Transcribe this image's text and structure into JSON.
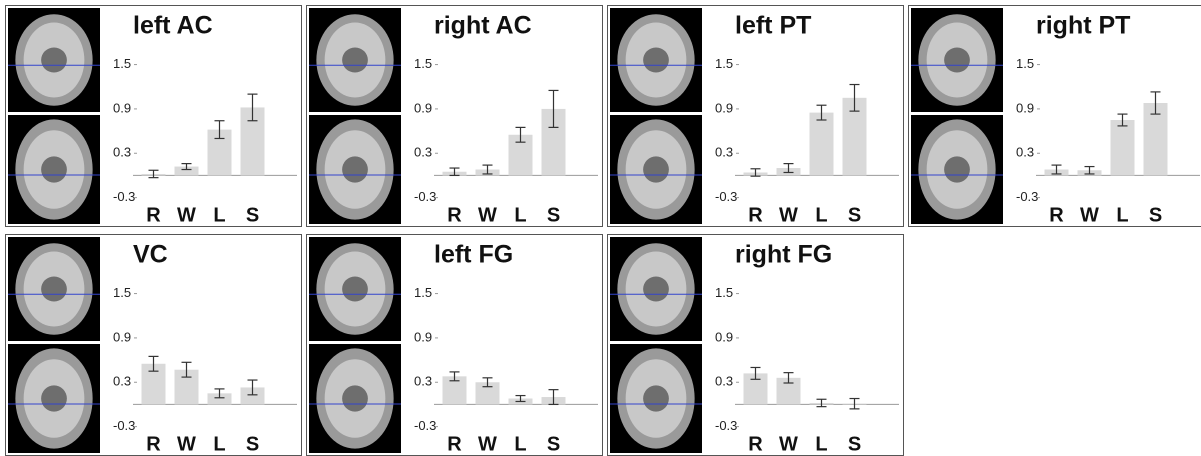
{
  "chart_data": [
    {
      "type": "bar",
      "title": "left AC",
      "categories": [
        "R",
        "W",
        "L",
        "S"
      ],
      "values": [
        0.02,
        0.12,
        0.62,
        0.92
      ],
      "errors": [
        0.05,
        0.04,
        0.12,
        0.18
      ],
      "color": "#d9d9d9",
      "ylim": [
        -0.4,
        1.9
      ],
      "yticks": [
        1.5,
        0.9,
        0.3,
        -0.3
      ]
    },
    {
      "type": "bar",
      "title": "right AC",
      "categories": [
        "R",
        "W",
        "L",
        "S"
      ],
      "values": [
        0.05,
        0.08,
        0.55,
        0.9
      ],
      "errors": [
        0.05,
        0.06,
        0.1,
        0.25
      ],
      "color": "#d9d9d9",
      "ylim": [
        -0.4,
        1.9
      ],
      "yticks": [
        1.5,
        0.9,
        0.3,
        -0.3
      ]
    },
    {
      "type": "bar",
      "title": "left PT",
      "categories": [
        "R",
        "W",
        "L",
        "S"
      ],
      "values": [
        0.04,
        0.1,
        0.85,
        1.05
      ],
      "errors": [
        0.05,
        0.06,
        0.1,
        0.18
      ],
      "color": "#d9d9d9",
      "ylim": [
        -0.4,
        1.9
      ],
      "yticks": [
        1.5,
        0.9,
        0.3,
        -0.3
      ]
    },
    {
      "type": "bar",
      "title": "right PT",
      "categories": [
        "R",
        "W",
        "L",
        "S"
      ],
      "values": [
        0.08,
        0.07,
        0.75,
        0.98
      ],
      "errors": [
        0.06,
        0.05,
        0.08,
        0.15
      ],
      "color": "#d9d9d9",
      "ylim": [
        -0.4,
        1.9
      ],
      "yticks": [
        1.5,
        0.9,
        0.3,
        -0.3
      ]
    },
    {
      "type": "bar",
      "title": "VC",
      "categories": [
        "R",
        "W",
        "L",
        "S"
      ],
      "values": [
        0.55,
        0.47,
        0.15,
        0.23
      ],
      "errors": [
        0.1,
        0.1,
        0.06,
        0.1
      ],
      "color": "#d9d9d9",
      "ylim": [
        -0.4,
        1.9
      ],
      "yticks": [
        1.5,
        0.9,
        0.3,
        -0.3
      ]
    },
    {
      "type": "bar",
      "title": "left FG",
      "categories": [
        "R",
        "W",
        "L",
        "S"
      ],
      "values": [
        0.38,
        0.3,
        0.08,
        0.1
      ],
      "errors": [
        0.06,
        0.06,
        0.04,
        0.1
      ],
      "color": "#d9d9d9",
      "ylim": [
        -0.4,
        1.9
      ],
      "yticks": [
        1.5,
        0.9,
        0.3,
        -0.3
      ]
    },
    {
      "type": "bar",
      "title": "right FG",
      "categories": [
        "R",
        "W",
        "L",
        "S"
      ],
      "values": [
        0.42,
        0.36,
        0.02,
        0.01
      ],
      "errors": [
        0.08,
        0.07,
        0.05,
        0.07
      ],
      "color": "#d9d9d9",
      "ylim": [
        -0.4,
        1.9
      ],
      "yticks": [
        1.5,
        0.9,
        0.3,
        -0.3
      ]
    }
  ]
}
